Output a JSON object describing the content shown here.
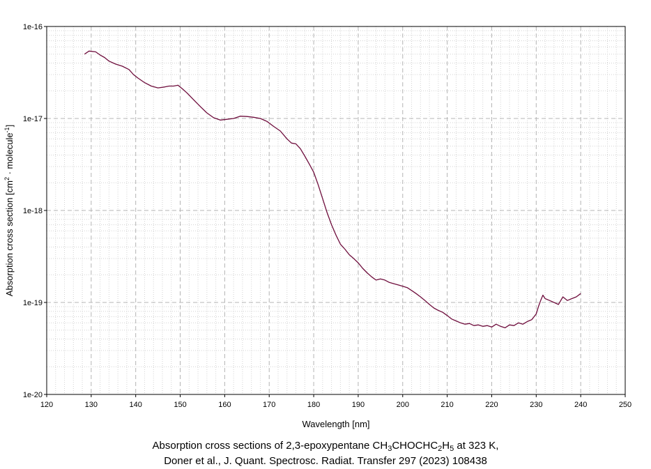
{
  "chart_data": {
    "type": "line",
    "xlabel": "Wavelength [nm]",
    "ylabel_parts": [
      "Absorption cross section [cm",
      "2",
      " · molecule",
      "-1",
      "]"
    ],
    "xlim": [
      120,
      250
    ],
    "ylim": [
      1e-20,
      1e-16
    ],
    "yscale": "log",
    "grid": true,
    "x_ticks": [
      120,
      130,
      140,
      150,
      160,
      170,
      180,
      190,
      200,
      210,
      220,
      230,
      240,
      250
    ],
    "y_ticks": [
      {
        "value": 1e-16,
        "label": "1e-16"
      },
      {
        "value": 1e-17,
        "label": "1e-17"
      },
      {
        "value": 1e-18,
        "label": "1e-18"
      },
      {
        "value": 1e-19,
        "label": "1e-19"
      },
      {
        "value": 1e-20,
        "label": "1e-20"
      }
    ],
    "series": [
      {
        "color": "#6e0d3c",
        "points": [
          [
            128.5,
            5e-17
          ],
          [
            129.5,
            5.4e-17
          ],
          [
            131,
            5.3e-17
          ],
          [
            132,
            4.9e-17
          ],
          [
            133,
            4.6e-17
          ],
          [
            134,
            4.2e-17
          ],
          [
            135.5,
            3.9e-17
          ],
          [
            137,
            3.7e-17
          ],
          [
            138.5,
            3.4e-17
          ],
          [
            139.5,
            3e-17
          ],
          [
            140.5,
            2.75e-17
          ],
          [
            142,
            2.45e-17
          ],
          [
            143.5,
            2.25e-17
          ],
          [
            145,
            2.15e-17
          ],
          [
            146.5,
            2.2e-17
          ],
          [
            147.5,
            2.25e-17
          ],
          [
            148.5,
            2.25e-17
          ],
          [
            149.5,
            2.3e-17
          ],
          [
            150.5,
            2.1e-17
          ],
          [
            151.5,
            1.9e-17
          ],
          [
            153,
            1.6e-17
          ],
          [
            154.5,
            1.35e-17
          ],
          [
            156,
            1.15e-17
          ],
          [
            157.5,
            1.02e-17
          ],
          [
            159,
            9.6e-18
          ],
          [
            160.5,
            9.8e-18
          ],
          [
            162,
            1e-17
          ],
          [
            163.5,
            1.06e-17
          ],
          [
            165,
            1.05e-17
          ],
          [
            166.5,
            1.03e-17
          ],
          [
            168,
            1e-17
          ],
          [
            169.5,
            9.3e-18
          ],
          [
            171,
            8.2e-18
          ],
          [
            172.5,
            7.3e-18
          ],
          [
            174,
            6e-18
          ],
          [
            175,
            5.4e-18
          ],
          [
            176,
            5.3e-18
          ],
          [
            177,
            4.7e-18
          ],
          [
            178,
            3.9e-18
          ],
          [
            179,
            3.2e-18
          ],
          [
            180,
            2.6e-18
          ],
          [
            181,
            1.9e-18
          ],
          [
            182,
            1.35e-18
          ],
          [
            183,
            9.5e-19
          ],
          [
            184,
            7e-19
          ],
          [
            185,
            5.4e-19
          ],
          [
            186,
            4.3e-19
          ],
          [
            187,
            3.8e-19
          ],
          [
            188,
            3.3e-19
          ],
          [
            189,
            3e-19
          ],
          [
            190,
            2.7e-19
          ],
          [
            191,
            2.35e-19
          ],
          [
            192,
            2.1e-19
          ],
          [
            193,
            1.9e-19
          ],
          [
            194,
            1.75e-19
          ],
          [
            195,
            1.8e-19
          ],
          [
            196,
            1.75e-19
          ],
          [
            197,
            1.65e-19
          ],
          [
            198,
            1.6e-19
          ],
          [
            199,
            1.55e-19
          ],
          [
            200,
            1.5e-19
          ],
          [
            201,
            1.45e-19
          ],
          [
            202,
            1.35e-19
          ],
          [
            203,
            1.25e-19
          ],
          [
            204,
            1.15e-19
          ],
          [
            205,
            1.05e-19
          ],
          [
            206,
            9.5e-20
          ],
          [
            207,
            8.7e-20
          ],
          [
            208,
            8.2e-20
          ],
          [
            209,
            7.8e-20
          ],
          [
            210,
            7.2e-20
          ],
          [
            211,
            6.6e-20
          ],
          [
            212,
            6.3e-20
          ],
          [
            213,
            6e-20
          ],
          [
            214,
            5.8e-20
          ],
          [
            215,
            5.9e-20
          ],
          [
            216,
            5.6e-20
          ],
          [
            217,
            5.7e-20
          ],
          [
            218,
            5.5e-20
          ],
          [
            219,
            5.6e-20
          ],
          [
            220,
            5.4e-20
          ],
          [
            221,
            5.8e-20
          ],
          [
            222,
            5.5e-20
          ],
          [
            223,
            5.3e-20
          ],
          [
            224,
            5.7e-20
          ],
          [
            225,
            5.6e-20
          ],
          [
            226,
            6e-20
          ],
          [
            227,
            5.8e-20
          ],
          [
            228,
            6.2e-20
          ],
          [
            229,
            6.5e-20
          ],
          [
            230,
            7.5e-20
          ],
          [
            230.5,
            9e-20
          ],
          [
            231,
            1.05e-19
          ],
          [
            231.5,
            1.2e-19
          ],
          [
            232,
            1.1e-19
          ],
          [
            233,
            1.05e-19
          ],
          [
            234,
            1e-19
          ],
          [
            235,
            9.5e-20
          ],
          [
            236,
            1.15e-19
          ],
          [
            237,
            1.05e-19
          ],
          [
            238,
            1.1e-19
          ],
          [
            239,
            1.15e-19
          ],
          [
            240,
            1.25e-19
          ]
        ]
      }
    ]
  },
  "caption": {
    "line1_prefix": "Absorption cross sections of 2,3-epoxypentane CH",
    "sub1": "3",
    "line1_mid": "CHOCHC",
    "sub2": "2",
    "line1_mid2": "H",
    "sub3": "5",
    "line1_suffix": " at 323 K,",
    "line2": "Doner et al., J. Quant. Spectrosc. Radiat. Transfer 297 (2023) 108438"
  },
  "colors": {
    "series": "#6e0d3c",
    "grid_major": "#b4b4b4",
    "grid_minor": "#d2d2d2",
    "frame": "#000000"
  }
}
